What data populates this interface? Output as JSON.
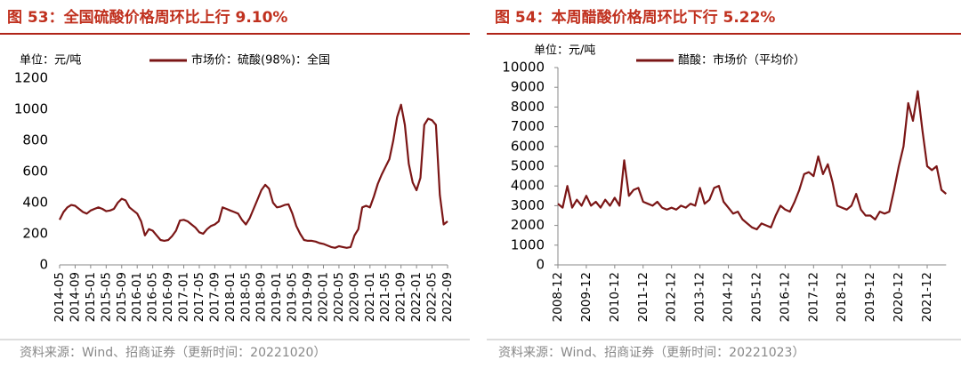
{
  "chart_data": [
    {
      "type": "line",
      "title": "图 53：全国硫酸价格周环比上行 9.10%",
      "unit": "单位：元/吨",
      "source": "资料来源：Wind、招商证券（更新时间：20221020）",
      "categories": [
        "2014-05",
        null,
        null,
        null,
        "2014-09",
        null,
        null,
        null,
        "2015-01",
        null,
        null,
        null,
        "2015-05",
        null,
        null,
        null,
        "2015-09",
        null,
        null,
        null,
        "2016-01",
        null,
        null,
        null,
        "2016-05",
        null,
        null,
        null,
        "2016-09",
        null,
        null,
        null,
        "2017-01",
        null,
        null,
        null,
        "2017-05",
        null,
        null,
        null,
        "2017-09",
        null,
        null,
        null,
        "2018-01",
        null,
        null,
        null,
        "2018-05",
        null,
        null,
        null,
        "2018-09",
        null,
        null,
        null,
        "2019-01",
        null,
        null,
        null,
        "2019-05",
        null,
        null,
        null,
        "2019-09",
        null,
        null,
        null,
        "2020-01",
        null,
        null,
        null,
        "2020-05",
        null,
        null,
        null,
        "2020-09",
        null,
        null,
        null,
        "2021-01",
        null,
        null,
        null,
        "2021-05",
        null,
        null,
        null,
        "2021-09",
        null,
        null,
        null,
        "2022-01",
        null,
        null,
        null,
        "2022-05",
        null,
        null,
        null,
        "2022-09"
      ],
      "series": [
        {
          "name": "市场价：硫酸(98%)：全国",
          "color": "#7b1616",
          "values": [
            290,
            340,
            370,
            385,
            380,
            360,
            340,
            330,
            350,
            360,
            370,
            360,
            345,
            350,
            360,
            400,
            425,
            415,
            370,
            350,
            330,
            280,
            190,
            230,
            220,
            190,
            160,
            155,
            160,
            185,
            220,
            285,
            290,
            280,
            260,
            240,
            210,
            200,
            230,
            250,
            260,
            280,
            370,
            360,
            350,
            340,
            330,
            290,
            260,
            300,
            360,
            420,
            480,
            515,
            490,
            400,
            370,
            375,
            385,
            390,
            330,
            250,
            200,
            160,
            155,
            155,
            150,
            140,
            135,
            125,
            115,
            110,
            120,
            115,
            110,
            115,
            190,
            230,
            370,
            380,
            370,
            440,
            520,
            580,
            630,
            680,
            800,
            950,
            1030,
            900,
            650,
            530,
            480,
            560,
            900,
            940,
            930,
            900,
            450,
            260,
            280
          ]
        }
      ],
      "ylim": [
        0,
        1200
      ],
      "yticks": [
        0,
        200,
        400,
        600,
        800,
        1000,
        1200
      ],
      "grid": false
    },
    {
      "type": "line",
      "title": "图 54：本周醋酸价格周环比下行 5.22%",
      "unit": "单位：元/吨",
      "source": "资料来源：Wind、招商证券（更新时间：20221023）",
      "categories": [
        "2008-12",
        null,
        null,
        null,
        null,
        null,
        "2009-12",
        null,
        null,
        null,
        null,
        null,
        "2010-12",
        null,
        null,
        null,
        null,
        null,
        "2011-12",
        null,
        null,
        null,
        null,
        null,
        "2012-12",
        null,
        null,
        null,
        null,
        null,
        "2013-12",
        null,
        null,
        null,
        null,
        null,
        "2014-12",
        null,
        null,
        null,
        null,
        null,
        "2015-12",
        null,
        null,
        null,
        null,
        null,
        "2016-12",
        null,
        null,
        null,
        null,
        null,
        "2017-12",
        null,
        null,
        null,
        null,
        null,
        "2018-12",
        null,
        null,
        null,
        null,
        null,
        "2019-12",
        null,
        null,
        null,
        null,
        null,
        "2020-12",
        null,
        null,
        null,
        null,
        null,
        "2021-12",
        null,
        null,
        null,
        null
      ],
      "series": [
        {
          "name": "醋酸：市场价（平均价）",
          "color": "#7b1616",
          "values": [
            3100,
            2900,
            4000,
            2900,
            3300,
            3000,
            3500,
            3000,
            3200,
            2900,
            3300,
            3000,
            3400,
            3000,
            5300,
            3500,
            3800,
            3900,
            3200,
            3100,
            3000,
            3200,
            2900,
            2800,
            2900,
            2800,
            3000,
            2900,
            3100,
            3000,
            3900,
            3100,
            3300,
            3900,
            4000,
            3200,
            2900,
            2600,
            2700,
            2300,
            2100,
            1900,
            1800,
            2100,
            2000,
            1900,
            2500,
            3000,
            2800,
            2700,
            3200,
            3800,
            4600,
            4700,
            4500,
            5500,
            4600,
            5100,
            4200,
            3000,
            2900,
            2800,
            3000,
            3600,
            2800,
            2500,
            2500,
            2300,
            2700,
            2600,
            2700,
            3800,
            5000,
            6000,
            8200,
            7300,
            8800,
            6800,
            5000,
            4800,
            5000,
            3800,
            3600
          ]
        }
      ],
      "ylim": [
        0,
        10000
      ],
      "yticks": [
        0,
        1000,
        2000,
        3000,
        4000,
        5000,
        6000,
        7000,
        8000,
        9000,
        10000
      ],
      "grid": false
    }
  ]
}
